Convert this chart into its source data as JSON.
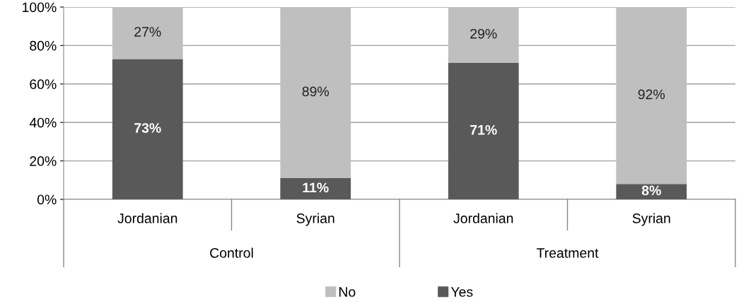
{
  "chart_data": {
    "type": "bar",
    "stacked": true,
    "categories": [
      "Jordanian",
      "Syrian",
      "Jordanian",
      "Syrian"
    ],
    "series": [
      {
        "name": "Yes",
        "color": "#595959",
        "values": [
          73,
          11,
          71,
          8
        ],
        "value_labels": [
          "73%",
          "11%",
          "71%",
          "8%"
        ]
      },
      {
        "name": "No",
        "color": "#bfbfbf",
        "values": [
          27,
          89,
          29,
          92
        ],
        "value_labels": [
          "27%",
          "89%",
          "29%",
          "92%"
        ]
      }
    ],
    "annotations": [
      "Control",
      "Treatment"
    ],
    "ylim": [
      0,
      100
    ],
    "yticks": [
      {
        "value": 0,
        "label": "0%"
      },
      {
        "value": 20,
        "label": "20%"
      },
      {
        "value": 40,
        "label": "40%"
      },
      {
        "value": 60,
        "label": "60%"
      },
      {
        "value": 80,
        "label": "80%"
      },
      {
        "value": 100,
        "label": "100%"
      }
    ],
    "grid": "y",
    "legend": "bottom"
  }
}
